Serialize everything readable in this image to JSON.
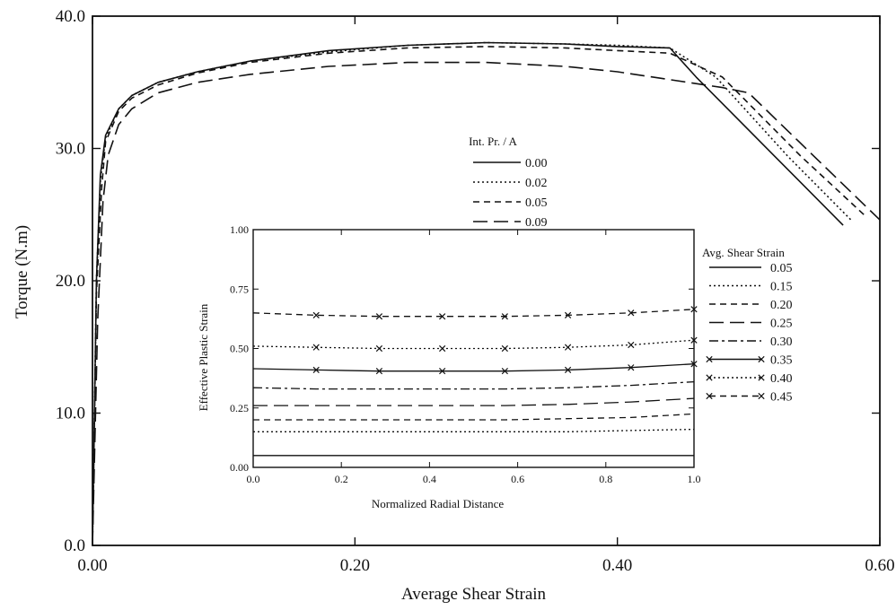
{
  "chart_data": [
    {
      "type": "line",
      "xlabel": "Average Shear Strain",
      "ylabel": "Torque (N.m)",
      "xlim": [
        0,
        0.6
      ],
      "ylim": [
        0,
        40
      ],
      "x_ticks": [
        "0.00",
        "0.20",
        "0.40",
        "0.60"
      ],
      "y_ticks": [
        "0.0",
        "10.0",
        "20.0",
        "30.0",
        "40.0"
      ],
      "legend": {
        "title": "Int. Pr. / A",
        "placement": "top-center"
      },
      "grid": false,
      "series": [
        {
          "name": "0.00",
          "style": "solid",
          "points": [
            [
              0,
              0
            ],
            [
              0.003,
              20
            ],
            [
              0.006,
              28
            ],
            [
              0.01,
              31
            ],
            [
              0.02,
              33
            ],
            [
              0.03,
              34
            ],
            [
              0.05,
              35
            ],
            [
              0.08,
              35.8
            ],
            [
              0.12,
              36.6
            ],
            [
              0.18,
              37.4
            ],
            [
              0.24,
              37.8
            ],
            [
              0.3,
              38
            ],
            [
              0.36,
              37.9
            ],
            [
              0.4,
              37.7
            ],
            [
              0.44,
              37.6
            ],
            [
              0.46,
              35.4
            ],
            [
              0.52,
              29.4
            ],
            [
              0.572,
              24.2
            ]
          ]
        },
        {
          "name": "0.02",
          "style": "dotted",
          "points": [
            [
              0,
              0
            ],
            [
              0.003,
              20
            ],
            [
              0.006,
              27.5
            ],
            [
              0.01,
              30.8
            ],
            [
              0.02,
              33
            ],
            [
              0.03,
              34
            ],
            [
              0.05,
              35
            ],
            [
              0.08,
              35.8
            ],
            [
              0.12,
              36.6
            ],
            [
              0.18,
              37.3
            ],
            [
              0.24,
              37.8
            ],
            [
              0.3,
              38
            ],
            [
              0.36,
              37.9
            ],
            [
              0.4,
              37.8
            ],
            [
              0.44,
              37.6
            ],
            [
              0.475,
              35.4
            ],
            [
              0.53,
              29.4
            ],
            [
              0.578,
              24.6
            ]
          ]
        },
        {
          "name": "0.05",
          "style": "short-dash",
          "points": [
            [
              0,
              0
            ],
            [
              0.003,
              19
            ],
            [
              0.007,
              27
            ],
            [
              0.01,
              30.5
            ],
            [
              0.02,
              32.8
            ],
            [
              0.03,
              33.8
            ],
            [
              0.05,
              34.8
            ],
            [
              0.08,
              35.7
            ],
            [
              0.12,
              36.5
            ],
            [
              0.18,
              37.2
            ],
            [
              0.24,
              37.6
            ],
            [
              0.3,
              37.7
            ],
            [
              0.36,
              37.6
            ],
            [
              0.4,
              37.4
            ],
            [
              0.44,
              37.2
            ],
            [
              0.48,
              35.4
            ],
            [
              0.54,
              29.4
            ],
            [
              0.59,
              24.8
            ]
          ]
        },
        {
          "name": "0.09",
          "style": "long-dash",
          "points": [
            [
              0,
              0
            ],
            [
              0.004,
              17
            ],
            [
              0.008,
              26
            ],
            [
              0.012,
              29.5
            ],
            [
              0.02,
              31.8
            ],
            [
              0.03,
              33
            ],
            [
              0.05,
              34.2
            ],
            [
              0.08,
              35
            ],
            [
              0.12,
              35.6
            ],
            [
              0.18,
              36.2
            ],
            [
              0.24,
              36.5
            ],
            [
              0.3,
              36.5
            ],
            [
              0.36,
              36.2
            ],
            [
              0.4,
              35.8
            ],
            [
              0.44,
              35.2
            ],
            [
              0.48,
              34.6
            ],
            [
              0.5,
              34.2
            ],
            [
              0.55,
              29.4
            ],
            [
              0.6,
              24.6
            ]
          ]
        }
      ]
    },
    {
      "type": "line",
      "xlabel": "Normalized Radial Distance",
      "ylabel": "Effective Plastic Strain",
      "xlim": [
        0,
        1
      ],
      "ylim": [
        0,
        1
      ],
      "x_ticks": [
        "0.0",
        "0.2",
        "0.4",
        "0.6",
        "0.8",
        "1.0"
      ],
      "y_ticks": [
        "0.00",
        "0.25",
        "0.50",
        "0.75",
        "1.00"
      ],
      "legend": {
        "title": "Avg. Shear Strain",
        "placement": "right-outside"
      },
      "grid": false,
      "x": [
        0,
        0.143,
        0.286,
        0.429,
        0.571,
        0.714,
        0.857,
        1.0
      ],
      "series": [
        {
          "name": "0.05",
          "style": "solid",
          "marker": "none",
          "values": [
            0.05,
            0.05,
            0.05,
            0.05,
            0.05,
            0.05,
            0.05,
            0.05
          ]
        },
        {
          "name": "0.15",
          "style": "dotted",
          "marker": "none",
          "values": [
            0.15,
            0.15,
            0.15,
            0.15,
            0.15,
            0.15,
            0.155,
            0.16
          ]
        },
        {
          "name": "0.20",
          "style": "short-dash",
          "marker": "none",
          "values": [
            0.2,
            0.2,
            0.2,
            0.2,
            0.2,
            0.205,
            0.21,
            0.225
          ]
        },
        {
          "name": "0.25",
          "style": "long-dash",
          "marker": "none",
          "values": [
            0.26,
            0.26,
            0.26,
            0.26,
            0.26,
            0.265,
            0.275,
            0.29
          ]
        },
        {
          "name": "0.30",
          "style": "dash-dot",
          "marker": "none",
          "values": [
            0.335,
            0.33,
            0.33,
            0.33,
            0.33,
            0.335,
            0.345,
            0.36
          ]
        },
        {
          "name": "0.35",
          "style": "solid",
          "marker": "x",
          "values": [
            0.415,
            0.41,
            0.405,
            0.405,
            0.405,
            0.41,
            0.42,
            0.435
          ]
        },
        {
          "name": "0.40",
          "style": "dotted",
          "marker": "x",
          "values": [
            0.51,
            0.505,
            0.5,
            0.5,
            0.5,
            0.505,
            0.515,
            0.535
          ]
        },
        {
          "name": "0.45",
          "style": "short-dash",
          "marker": "x",
          "values": [
            0.65,
            0.64,
            0.635,
            0.635,
            0.635,
            0.64,
            0.65,
            0.665
          ]
        }
      ]
    }
  ]
}
